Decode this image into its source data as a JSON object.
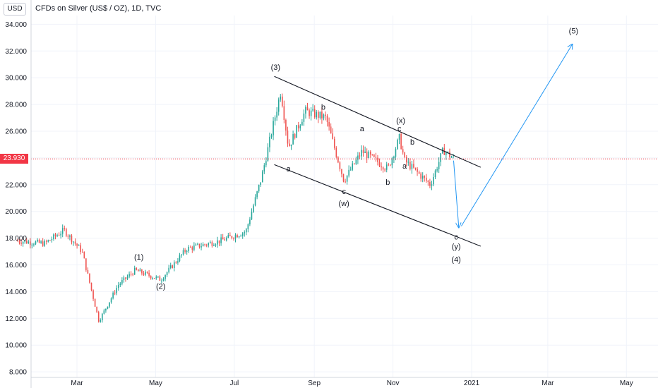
{
  "header": {
    "currency": "USD",
    "title": "CFDs on Silver (US$ / OZ), 1D, TVC"
  },
  "colors": {
    "up": "#26a69a",
    "down": "#ef5350",
    "channel": "#131722",
    "projection": "#2196f3",
    "price_line": "#f23645",
    "grid": "#f0f3fa"
  },
  "chart_data": {
    "type": "candlestick",
    "symbol": "CFDs on Silver (US$ / OZ)",
    "interval": "1D",
    "source": "TVC",
    "current_price": 23.93,
    "current_price_label": "23.930",
    "y_ticks": [
      "8.000",
      "10.000",
      "12.000",
      "14.000",
      "16.000",
      "18.000",
      "20.000",
      "22.000",
      "24.000",
      "26.000",
      "28.000",
      "30.000",
      "32.000",
      "34.000"
    ],
    "x_ticks": [
      "Mar",
      "May",
      "Jul",
      "Sep",
      "Nov",
      "2021",
      "Mar",
      "May"
    ],
    "ylim": [
      8,
      34
    ],
    "price_path": [
      {
        "date": "2020-01-15",
        "price": 17.8
      },
      {
        "date": "2020-02-05",
        "price": 17.6
      },
      {
        "date": "2020-02-20",
        "price": 18.6
      },
      {
        "date": "2020-03-05",
        "price": 17.0
      },
      {
        "date": "2020-03-18",
        "price": 11.8
      },
      {
        "date": "2020-04-02",
        "price": 14.5
      },
      {
        "date": "2020-04-15",
        "price": 15.6
      },
      {
        "date": "2020-05-05",
        "price": 14.9
      },
      {
        "date": "2020-05-25",
        "price": 17.2
      },
      {
        "date": "2020-06-20",
        "price": 17.8
      },
      {
        "date": "2020-07-10",
        "price": 18.5
      },
      {
        "date": "2020-07-22",
        "price": 22.5
      },
      {
        "date": "2020-08-06",
        "price": 29.0
      },
      {
        "date": "2020-08-12",
        "price": 24.8
      },
      {
        "date": "2020-08-25",
        "price": 27.5
      },
      {
        "date": "2020-09-10",
        "price": 27.0
      },
      {
        "date": "2020-09-24",
        "price": 22.3
      },
      {
        "date": "2020-10-08",
        "price": 24.5
      },
      {
        "date": "2020-10-28",
        "price": 23.2
      },
      {
        "date": "2020-11-06",
        "price": 25.5
      },
      {
        "date": "2020-11-10",
        "price": 23.8
      },
      {
        "date": "2020-11-30",
        "price": 22.0
      },
      {
        "date": "2020-12-10",
        "price": 24.6
      },
      {
        "date": "2020-12-18",
        "price": 23.93
      }
    ],
    "channel_lines": [
      {
        "from": {
          "date": "2020-08-01",
          "price": 30.1
        },
        "to": {
          "date": "2021-01-08",
          "price": 23.3
        }
      },
      {
        "from": {
          "date": "2020-08-01",
          "price": 23.5
        },
        "to": {
          "date": "2021-01-08",
          "price": 17.4
        }
      }
    ],
    "projection_arrows": [
      {
        "from": {
          "date": "2020-12-18",
          "price": 23.8
        },
        "to": {
          "date": "2020-12-22",
          "price": 18.8
        }
      },
      {
        "from": {
          "date": "2020-12-24",
          "price": 18.9
        },
        "to": {
          "date": "2021-03-20",
          "price": 32.5
        }
      }
    ],
    "wave_labels": [
      {
        "text": "(1)",
        "date": "2020-04-18",
        "price": 16.4
      },
      {
        "text": "(2)",
        "date": "2020-05-05",
        "price": 14.2
      },
      {
        "text": "(3)",
        "date": "2020-08-02",
        "price": 30.6
      },
      {
        "text": "a",
        "date": "2020-08-12",
        "price": 23.0
      },
      {
        "text": "b",
        "date": "2020-09-08",
        "price": 27.6
      },
      {
        "text": "c",
        "date": "2020-09-24",
        "price": 21.3
      },
      {
        "text": "(w)",
        "date": "2020-09-24",
        "price": 20.4
      },
      {
        "text": "a",
        "date": "2020-10-08",
        "price": 26.0
      },
      {
        "text": "b",
        "date": "2020-10-28",
        "price": 22.0
      },
      {
        "text": "c",
        "date": "2020-11-06",
        "price": 26.0
      },
      {
        "text": "(x)",
        "date": "2020-11-07",
        "price": 26.6
      },
      {
        "text": "a",
        "date": "2020-11-10",
        "price": 23.2
      },
      {
        "text": "b",
        "date": "2020-11-16",
        "price": 25.0
      },
      {
        "text": "c",
        "date": "2020-12-20",
        "price": 17.9
      },
      {
        "text": "(y)",
        "date": "2020-12-20",
        "price": 17.2
      },
      {
        "text": "(4)",
        "date": "2020-12-20",
        "price": 16.2
      },
      {
        "text": "(5)",
        "date": "2021-03-21",
        "price": 33.3
      }
    ]
  }
}
